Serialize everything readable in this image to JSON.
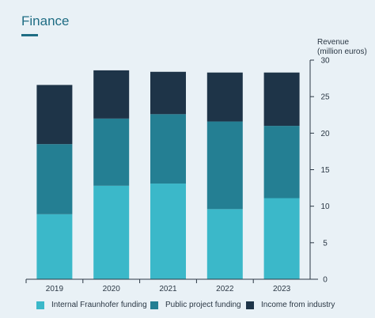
{
  "header": {
    "title": "Finance"
  },
  "chart_data": {
    "type": "bar",
    "stacked": true,
    "categories": [
      "2019",
      "2020",
      "2021",
      "2022",
      "2023"
    ],
    "series": [
      {
        "name": "Internal Fraunhofer funding",
        "color": "#3bb8c9",
        "values": [
          8.9,
          12.8,
          13.1,
          9.6,
          11.1
        ]
      },
      {
        "name": "Public project funding",
        "color": "#247f93",
        "values": [
          9.6,
          9.2,
          9.5,
          12.0,
          9.9
        ]
      },
      {
        "name": "Income from industry",
        "color": "#1e3448",
        "values": [
          8.1,
          6.6,
          5.8,
          6.7,
          7.3
        ]
      }
    ],
    "ylabel_line1": "Revenue",
    "ylabel_line2": "(million euros)",
    "ylim": [
      0,
      30
    ],
    "yticks": [
      0,
      5,
      10,
      15,
      20,
      25,
      30
    ],
    "grid": false,
    "legend_position": "bottom"
  }
}
